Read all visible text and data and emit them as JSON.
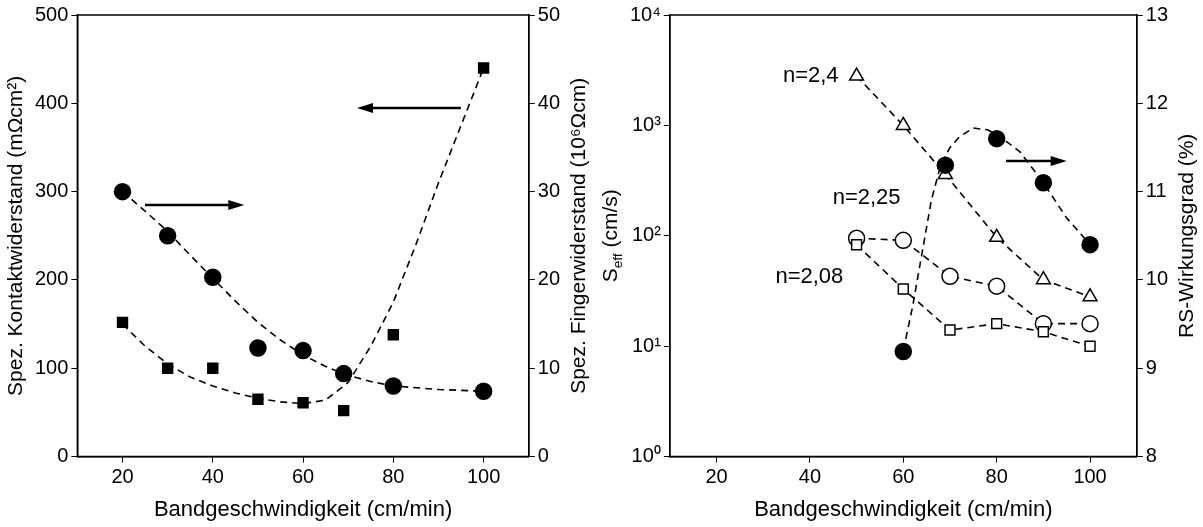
{
  "chart_data": [
    {
      "type": "scatter",
      "xlabel": "Bandgeschwindigkeit (cm/min)",
      "ylabel": "Spez. Kontaktwiderstand (mΩcm²)",
      "y2label": "Spez. Fingerwiderstand (10⁶Ωcm)",
      "xlim": [
        10,
        110
      ],
      "xticks": [
        20,
        40,
        60,
        80,
        100
      ],
      "ylim": [
        0,
        500
      ],
      "yticks": [
        0,
        100,
        200,
        300,
        400,
        500
      ],
      "y2lim": [
        0,
        50
      ],
      "y2ticks": [
        0,
        10,
        20,
        30,
        40,
        50
      ],
      "legend": false,
      "grid": false,
      "series": [
        {
          "color": "#000000",
          "marker": "square",
          "axis": "y",
          "x": [
            20,
            30,
            40,
            50,
            60,
            69,
            80,
            100
          ],
          "values": [
            152,
            100,
            100,
            65,
            61,
            52,
            138,
            440
          ]
        },
        {
          "color": "#000000",
          "marker": "circle",
          "axis": "y2",
          "x": [
            20,
            30,
            40,
            50,
            60,
            69,
            80,
            100
          ],
          "values": [
            30,
            25,
            20.3,
            12.3,
            12,
            9.4,
            8,
            7.4
          ]
        },
        {
          "type": "line",
          "color": "#000000",
          "marker": "none",
          "line_style": "dashed",
          "axis": "y",
          "x": [
            20,
            25,
            30,
            35,
            40,
            45,
            50,
            55,
            60,
            65,
            70,
            75,
            80,
            85,
            90,
            95,
            100
          ],
          "values": [
            150,
            125,
            105,
            90,
            80,
            72,
            66,
            62,
            60,
            64,
            84,
            125,
            175,
            240,
            310,
            375,
            440
          ]
        },
        {
          "type": "line",
          "color": "#000000",
          "marker": "none",
          "line_style": "dashed",
          "axis": "y2",
          "x": [
            20,
            25,
            30,
            35,
            40,
            45,
            50,
            55,
            60,
            65,
            70,
            75,
            80,
            90,
            100
          ],
          "values": [
            30,
            27.8,
            25.5,
            22.8,
            20.2,
            17.6,
            15.2,
            13.2,
            11.5,
            10.2,
            9.2,
            8.5,
            8,
            7.6,
            7.4
          ]
        }
      ]
    },
    {
      "type": "line",
      "xlabel": "Bandgeschwindigkeit (cm/min)",
      "ylabel": "S$_{eff}$ (cm/s)",
      "y2label": "RS-Wirkungsgrad (%)",
      "log": "y",
      "xlim": [
        10,
        110
      ],
      "xticks": [
        20,
        40,
        60,
        80,
        100
      ],
      "ylim": [
        1,
        10000
      ],
      "yticks": [
        {
          "value": 1,
          "label": "10⁰"
        },
        {
          "value": 10,
          "label": "10¹"
        },
        {
          "value": 100,
          "label": "10²"
        },
        {
          "value": 1000,
          "label": "10³"
        },
        {
          "value": 10000,
          "label": "10⁴"
        }
      ],
      "y2lim": [
        8,
        13
      ],
      "y2ticks": [
        8,
        9,
        10,
        11,
        12,
        13
      ],
      "legend": false,
      "grid": false,
      "series": [
        {
          "name": "n=2,4",
          "color": "#000000",
          "marker": "triangle",
          "line_style": "dashed",
          "axis": "y",
          "x": [
            50,
            60,
            69,
            80,
            90,
            100
          ],
          "values": [
            2800,
            1000,
            360,
            97,
            40,
            28
          ]
        },
        {
          "name": "n=2,25",
          "color": "#000000",
          "marker": "circle",
          "line_style": "dashed",
          "axis": "y",
          "x": [
            50,
            60,
            70,
            80,
            90,
            100
          ],
          "values": [
            95,
            91,
            43,
            35,
            16,
            16
          ]
        },
        {
          "name": "n=2,08",
          "color": "#000000",
          "marker": "square",
          "line_style": "dashed",
          "axis": "y",
          "x": [
            50,
            60,
            70,
            80,
            90,
            100
          ],
          "values": [
            83,
            33,
            14,
            16,
            13.5,
            10
          ]
        },
        {
          "type": "scatter",
          "color": "#000000",
          "marker": "circle",
          "axis": "y2",
          "x": [
            60,
            69,
            80,
            90,
            100
          ],
          "values": [
            9.19,
            11.3,
            11.6,
            11.1,
            10.4
          ]
        },
        {
          "color": "#000000",
          "marker": "none",
          "line_style": "dashed",
          "axis": "y2",
          "x": [
            60,
            62,
            64,
            66,
            68,
            70,
            72,
            75,
            78,
            80,
            85,
            90,
            95,
            100
          ],
          "values": [
            9.2,
            9.7,
            10.3,
            10.9,
            11.3,
            11.5,
            11.62,
            11.72,
            11.7,
            11.65,
            11.45,
            11.1,
            10.7,
            10.4
          ]
        }
      ]
    }
  ]
}
